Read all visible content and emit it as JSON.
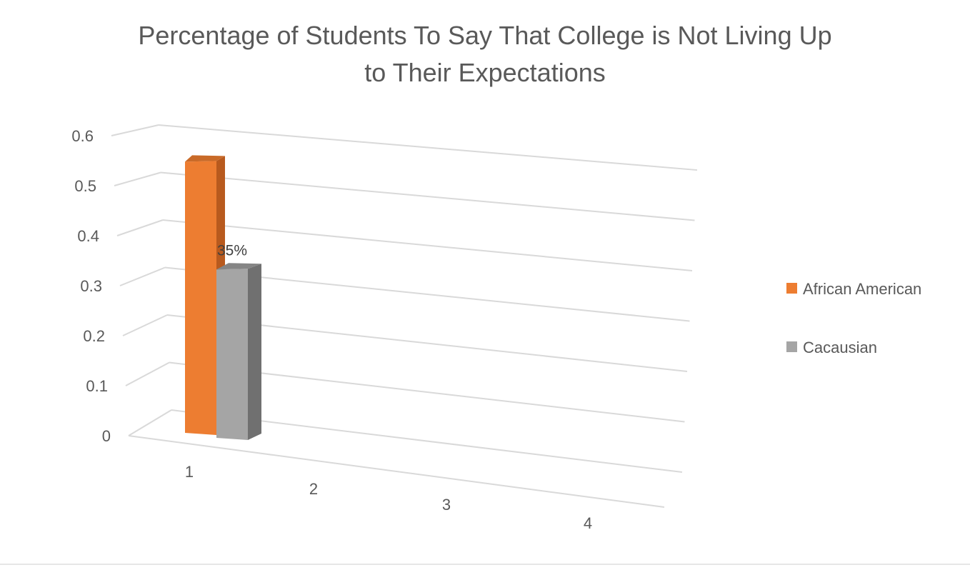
{
  "chart_data": {
    "type": "bar",
    "title_lines": [
      "Percentage of Students To Say That College is Not Living Up",
      "to Their Expectations"
    ],
    "categories": [
      "1",
      "2",
      "3",
      "4"
    ],
    "series": [
      {
        "name": "African American",
        "values": [
          0.56,
          null,
          null,
          null
        ],
        "color": "#ED7D31",
        "side_color": "#B85A1E",
        "top_color": "#C96A28"
      },
      {
        "name": "Cacausian",
        "values": [
          0.35,
          null,
          null,
          null
        ],
        "color": "#A5A5A5",
        "side_color": "#707070",
        "top_color": "#858585"
      }
    ],
    "data_labels": [
      {
        "series": 1,
        "category": 0,
        "text": "35%"
      }
    ],
    "y_ticks": [
      "0",
      "0.1",
      "0.2",
      "0.3",
      "0.4",
      "0.5",
      "0.6"
    ],
    "ylim": [
      0,
      0.6
    ],
    "grid": true,
    "legend_position": "right",
    "gridline_color": "#d9d9d9"
  }
}
